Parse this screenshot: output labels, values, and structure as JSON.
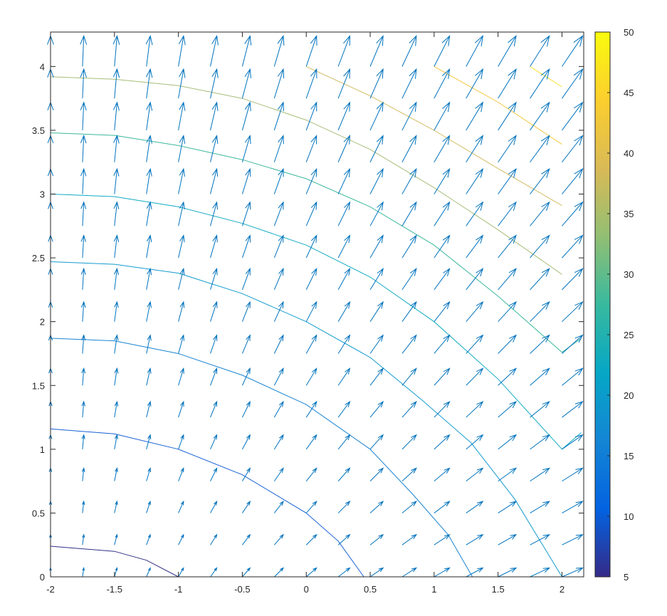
{
  "chart_data": {
    "type": "contour+quiver",
    "title": "",
    "xlabel": "",
    "ylabel": "",
    "xlim": [
      -2,
      2.17
    ],
    "ylim": [
      0,
      4.27
    ],
    "grid": false,
    "x_ticks": [
      "-2",
      "-1.5",
      "-1",
      "-0.5",
      "0",
      "0.5",
      "1",
      "1.5",
      "2"
    ],
    "x_tick_values": [
      -2,
      -1.5,
      -1,
      -0.5,
      0,
      0.5,
      1,
      1.5,
      2
    ],
    "y_ticks": [
      "0",
      "0.5",
      "1",
      "1.5",
      "2",
      "2.5",
      "3",
      "3.5",
      "4"
    ],
    "y_tick_values": [
      0,
      0.5,
      1,
      1.5,
      2,
      2.5,
      3,
      3.5,
      4
    ],
    "colorbar": {
      "range": [
        5,
        50
      ],
      "ticks": [
        "5",
        "10",
        "15",
        "20",
        "25",
        "30",
        "35",
        "40",
        "45",
        "50"
      ],
      "tick_values": [
        5,
        10,
        15,
        20,
        25,
        30,
        35,
        40,
        45,
        50
      ],
      "colormap": "parula",
      "location": "right"
    },
    "quiver": {
      "color": "#0072BD",
      "x": [
        -2,
        -1.75,
        -1.5,
        -1.25,
        -1,
        -0.75,
        -0.5,
        -0.25,
        0,
        0.25,
        0.5,
        0.75,
        1,
        1.25,
        1.5,
        1.75,
        2
      ],
      "y": [
        0,
        0.25,
        0.5,
        0.75,
        1,
        1.25,
        1.5,
        1.75,
        2,
        2.25,
        2.5,
        2.75,
        3,
        3.25,
        3.5,
        3.75,
        4
      ],
      "u_by_x": [
        0,
        0.25,
        0.5,
        0.75,
        1,
        1.25,
        1.5,
        1.75,
        2,
        2.25,
        2.5,
        2.75,
        3,
        3.25,
        3.5,
        3.75,
        4
      ],
      "v_by_y": [
        1.65,
        1.9,
        2.15,
        2.4,
        2.65,
        2.9,
        3.15,
        3.4,
        3.65,
        3.9,
        4.15,
        4.4,
        4.65,
        4.9,
        5.15,
        5.4,
        5.65
      ]
    },
    "contours": [
      {
        "level": 7,
        "color": "#312e86",
        "points": [
          [
            -2,
            0.24
          ],
          [
            -1.5,
            0.2
          ],
          [
            -1.25,
            0.13
          ],
          [
            -1,
            0
          ]
        ]
      },
      {
        "level": 12,
        "color": "#1660d6",
        "points": [
          [
            -2,
            1.16
          ],
          [
            -1.5,
            1.12
          ],
          [
            -1,
            1.0
          ],
          [
            -0.5,
            0.8
          ],
          [
            0,
            0.5
          ],
          [
            0.25,
            0.28
          ],
          [
            0.45,
            0
          ]
        ]
      },
      {
        "level": 17,
        "color": "#1a84d2",
        "points": [
          [
            -2,
            1.87
          ],
          [
            -1.5,
            1.85
          ],
          [
            -1,
            1.75
          ],
          [
            -0.5,
            1.58
          ],
          [
            0,
            1.35
          ],
          [
            0.5,
            1.0
          ],
          [
            0.83,
            0.65
          ],
          [
            1.11,
            0.33
          ],
          [
            1.3,
            0
          ]
        ]
      },
      {
        "level": 20,
        "color": "#139bcf",
        "points": [
          [
            -2,
            2.47
          ],
          [
            -1.5,
            2.45
          ],
          [
            -1,
            2.38
          ],
          [
            -0.5,
            2.22
          ],
          [
            0,
            2.0
          ],
          [
            0.5,
            1.72
          ],
          [
            0.9,
            1.39
          ],
          [
            1.29,
            1.05
          ],
          [
            1.63,
            0.61
          ],
          [
            2,
            0
          ]
        ]
      },
      {
        "level": 23,
        "color": "#12aac3",
        "points": [
          [
            -2,
            3.0
          ],
          [
            -1.5,
            2.98
          ],
          [
            -1,
            2.9
          ],
          [
            -0.5,
            2.77
          ],
          [
            0,
            2.6
          ],
          [
            0.5,
            2.35
          ],
          [
            1,
            2.0
          ],
          [
            1.5,
            1.55
          ],
          [
            2,
            1.0
          ],
          [
            2.15,
            1.13
          ]
        ]
      },
      {
        "level": 27,
        "color": "#3cb79c",
        "points": [
          [
            -2,
            3.48
          ],
          [
            -1.5,
            3.46
          ],
          [
            -1,
            3.38
          ],
          [
            -0.5,
            3.27
          ],
          [
            0,
            3.12
          ],
          [
            0.5,
            2.9
          ],
          [
            1,
            2.6
          ],
          [
            1.5,
            2.2
          ],
          [
            2,
            1.76
          ],
          [
            2.15,
            1.87
          ]
        ]
      },
      {
        "level": 33,
        "color": "#a6bd78",
        "points": [
          [
            -2,
            3.92
          ],
          [
            -1.5,
            3.9
          ],
          [
            -1,
            3.85
          ],
          [
            -0.5,
            3.75
          ],
          [
            0,
            3.58
          ],
          [
            0.5,
            3.35
          ],
          [
            1,
            3.05
          ],
          [
            1.5,
            2.72
          ],
          [
            2,
            2.37
          ]
        ]
      },
      {
        "level": 38,
        "color": "#d2bb62",
        "points": [
          [
            0,
            4.0
          ],
          [
            0.5,
            3.77
          ],
          [
            1,
            3.5
          ],
          [
            1.5,
            3.2
          ],
          [
            2,
            2.91
          ]
        ]
      },
      {
        "level": 43,
        "color": "#f4c63f",
        "points": [
          [
            1,
            4.0
          ],
          [
            1.5,
            3.72
          ],
          [
            2,
            3.39
          ]
        ]
      },
      {
        "level": 47,
        "color": "#f5e02c",
        "points": [
          [
            1.75,
            4.0
          ],
          [
            2,
            3.84
          ]
        ]
      }
    ]
  }
}
